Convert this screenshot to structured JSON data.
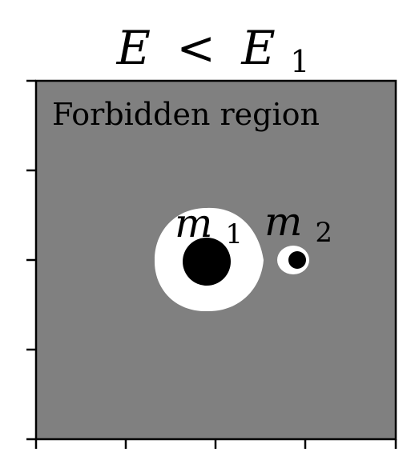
{
  "title": {
    "lhs": "E",
    "relation": "<",
    "rhs": "E",
    "rhs_subscript": "1"
  },
  "region_label": "Forbidden region",
  "masses": [
    {
      "symbol": "m",
      "subscript": "1"
    },
    {
      "symbol": "m",
      "subscript": "2"
    }
  ],
  "colors": {
    "forbidden": "#808080",
    "allowed": "#ffffff",
    "mass": "#000000",
    "axes": "#000000"
  }
}
